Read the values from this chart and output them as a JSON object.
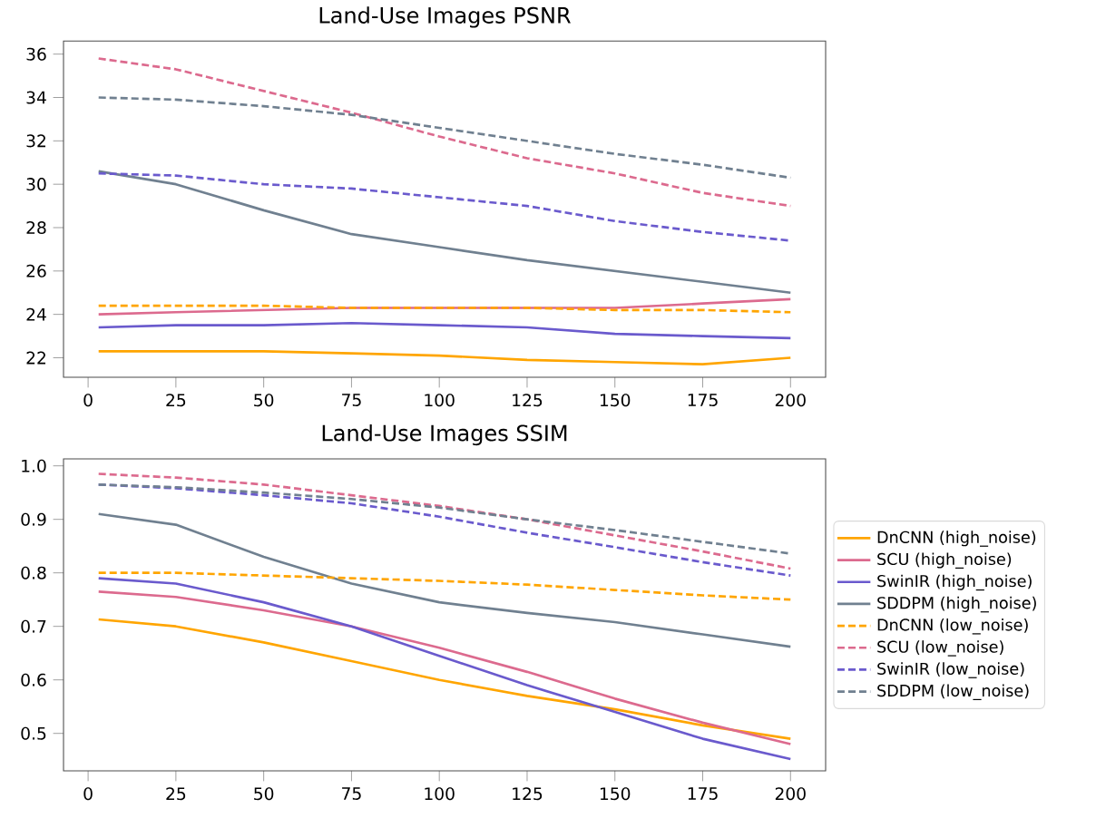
{
  "chart_data": [
    {
      "type": "line",
      "title": "Land-Use Images PSNR",
      "x": [
        3,
        25,
        50,
        75,
        100,
        125,
        150,
        175,
        200
      ],
      "xlim": [
        -7,
        210
      ],
      "xticks": [
        0,
        25,
        50,
        75,
        100,
        125,
        150,
        175,
        200
      ],
      "ylim": [
        21.1,
        36.6
      ],
      "yticks": [
        22,
        24,
        26,
        28,
        30,
        32,
        34,
        36
      ],
      "grid": false,
      "legend": false,
      "marker": "none",
      "series": [
        {
          "color": "#ffa500",
          "line_style": "solid",
          "values": [
            22.3,
            22.3,
            22.3,
            22.2,
            22.1,
            21.9,
            21.8,
            21.7,
            22.0
          ]
        },
        {
          "color": "#dc6a8e",
          "line_style": "solid",
          "values": [
            24.0,
            24.1,
            24.2,
            24.3,
            24.3,
            24.3,
            24.3,
            24.5,
            24.7
          ]
        },
        {
          "color": "#6a5acd",
          "line_style": "solid",
          "values": [
            23.4,
            23.5,
            23.5,
            23.6,
            23.5,
            23.4,
            23.1,
            23.0,
            22.9
          ]
        },
        {
          "color": "#708090",
          "line_style": "solid",
          "values": [
            30.6,
            30.0,
            28.8,
            27.7,
            27.1,
            26.5,
            26.0,
            25.5,
            25.0
          ]
        },
        {
          "color": "#ffa500",
          "line_style": "dashed",
          "values": [
            24.4,
            24.4,
            24.4,
            24.3,
            24.3,
            24.3,
            24.2,
            24.2,
            24.1
          ]
        },
        {
          "color": "#dc6a8e",
          "line_style": "dashed",
          "values": [
            35.8,
            35.3,
            34.3,
            33.3,
            32.2,
            31.2,
            30.5,
            29.6,
            29.0
          ]
        },
        {
          "color": "#6a5acd",
          "line_style": "dashed",
          "values": [
            30.5,
            30.4,
            30.0,
            29.8,
            29.4,
            29.0,
            28.3,
            27.8,
            27.4
          ]
        },
        {
          "color": "#708090",
          "line_style": "dashed",
          "values": [
            34.0,
            33.9,
            33.6,
            33.2,
            32.6,
            32.0,
            31.4,
            30.9,
            30.3
          ]
        }
      ]
    },
    {
      "type": "line",
      "title": "Land-Use Images SSIM",
      "x": [
        3,
        25,
        50,
        75,
        100,
        125,
        150,
        175,
        200
      ],
      "xlim": [
        -7,
        210
      ],
      "xticks": [
        0,
        25,
        50,
        75,
        100,
        125,
        150,
        175,
        200
      ],
      "ylim": [
        0.43,
        1.013
      ],
      "yticks": [
        0.5,
        0.6,
        0.7,
        0.8,
        0.9,
        {
          "value": 1.0,
          "label": "1.0"
        }
      ],
      "grid": false,
      "legend": "right",
      "marker": "none",
      "series": [
        {
          "name": "DnCNN (high_noise)",
          "color": "#ffa500",
          "line_style": "solid",
          "values": [
            0.713,
            0.7,
            0.67,
            0.635,
            0.6,
            0.57,
            0.545,
            0.515,
            0.49
          ]
        },
        {
          "name": "SCU (high_noise)",
          "color": "#dc6a8e",
          "line_style": "solid",
          "values": [
            0.765,
            0.755,
            0.73,
            0.7,
            0.66,
            0.615,
            0.565,
            0.52,
            0.48
          ]
        },
        {
          "name": "SwinIR (high_noise)",
          "color": "#6a5acd",
          "line_style": "solid",
          "values": [
            0.79,
            0.78,
            0.745,
            0.7,
            0.645,
            0.59,
            0.54,
            0.49,
            0.452
          ]
        },
        {
          "name": "SDDPM (high_noise)",
          "color": "#708090",
          "line_style": "solid",
          "values": [
            0.91,
            0.89,
            0.83,
            0.78,
            0.745,
            0.725,
            0.708,
            0.685,
            0.662
          ]
        },
        {
          "name": "DnCNN (low_noise)",
          "color": "#ffa500",
          "line_style": "dashed",
          "values": [
            0.8,
            0.8,
            0.795,
            0.79,
            0.785,
            0.778,
            0.768,
            0.758,
            0.75
          ]
        },
        {
          "name": "SCU (low_noise)",
          "color": "#dc6a8e",
          "line_style": "dashed",
          "values": [
            0.985,
            0.978,
            0.965,
            0.945,
            0.925,
            0.9,
            0.87,
            0.84,
            0.808
          ]
        },
        {
          "name": "SwinIR (low_noise)",
          "color": "#6a5acd",
          "line_style": "dashed",
          "values": [
            0.965,
            0.958,
            0.945,
            0.93,
            0.905,
            0.875,
            0.848,
            0.82,
            0.795
          ]
        },
        {
          "name": "SDDPM (low_noise)",
          "color": "#708090",
          "line_style": "dashed",
          "values": [
            0.965,
            0.96,
            0.95,
            0.938,
            0.922,
            0.9,
            0.88,
            0.858,
            0.836
          ]
        }
      ]
    }
  ]
}
